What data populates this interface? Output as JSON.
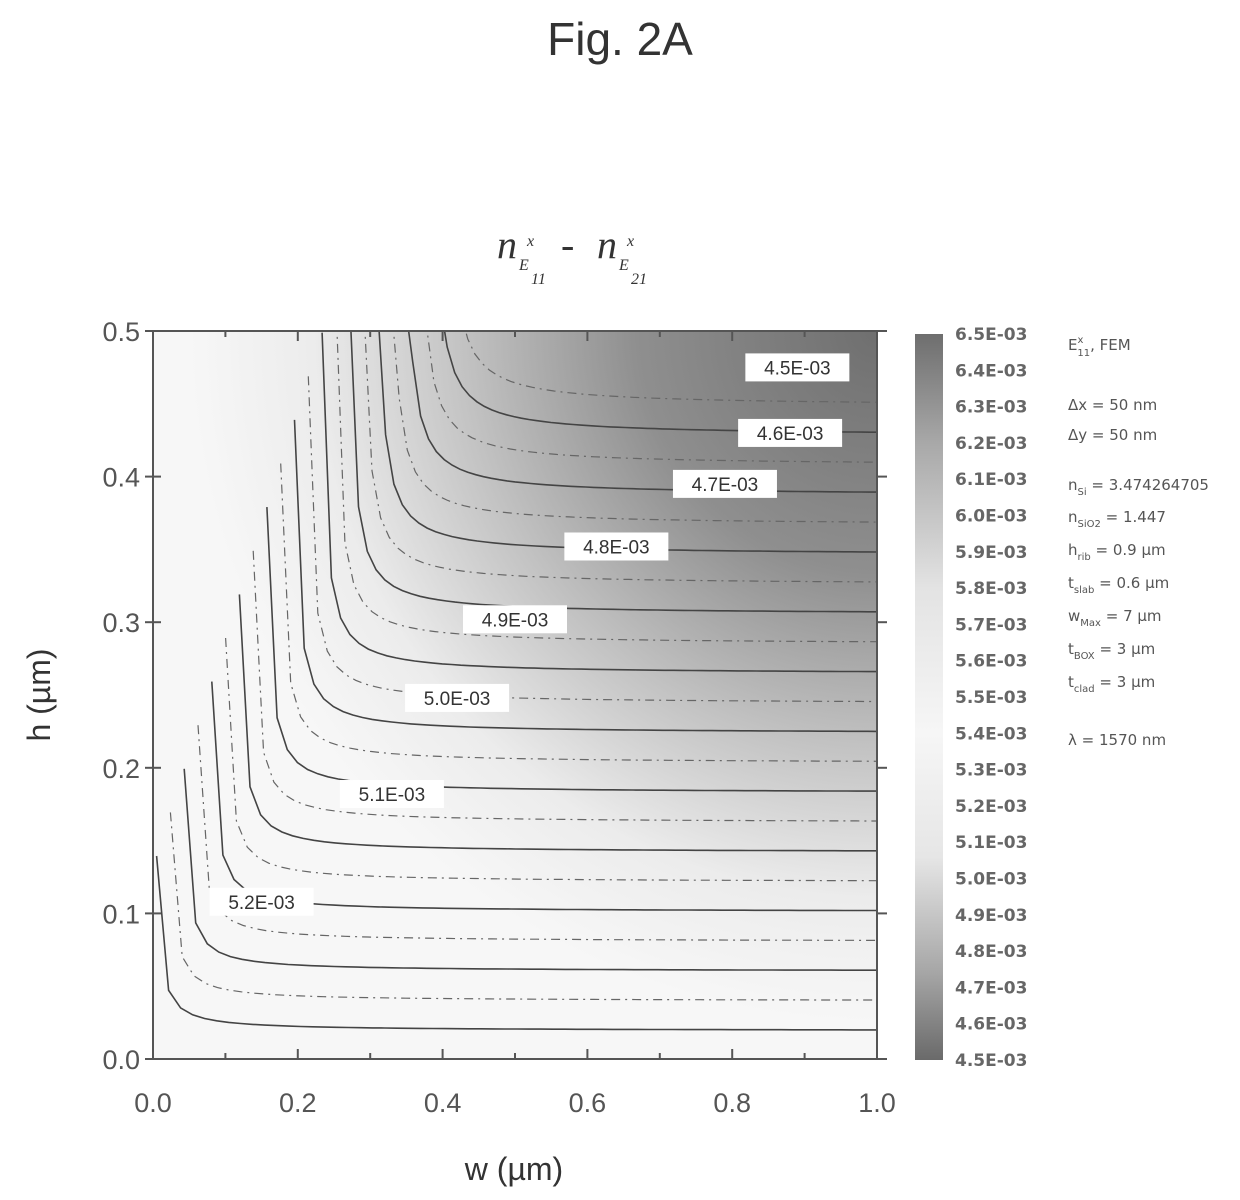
{
  "figure": {
    "label": "Fig. 2A"
  },
  "chart_data": {
    "type": "heatmap",
    "title": "n_{E11x} - n_{E21x}",
    "title_parts": [
      {
        "base": "n",
        "sup": "x",
        "sub": "11",
        "letter": "E"
      },
      {
        "base": "n",
        "sup": "x",
        "sub": "21",
        "letter": "E"
      }
    ],
    "title_separator": "-",
    "xlabel": "w  (µm)",
    "ylabel": "h  (µm)",
    "xlim": [
      0.0,
      1.0
    ],
    "ylim": [
      0.0,
      0.5
    ],
    "xticks": [
      "0.0",
      "0.2",
      "0.4",
      "0.6",
      "0.8",
      "1.0"
    ],
    "yticks": [
      "0.0",
      "0.1",
      "0.2",
      "0.3",
      "0.4",
      "0.5"
    ],
    "xtick_values": [
      0.0,
      0.2,
      0.4,
      0.6,
      0.8,
      1.0
    ],
    "ytick_values": [
      0.0,
      0.1,
      0.2,
      0.3,
      0.4,
      0.5
    ],
    "colorbar": {
      "ticks": [
        "6.5E-03",
        "6.4E-03",
        "6.3E-03",
        "6.2E-03",
        "6.1E-03",
        "6.0E-03",
        "5.9E-03",
        "5.8E-03",
        "5.7E-03",
        "5.6E-03",
        "5.5E-03",
        "5.4E-03",
        "5.3E-03",
        "5.2E-03",
        "5.1E-03",
        "5.0E-03",
        "4.9E-03",
        "4.8E-03",
        "4.7E-03",
        "4.6E-03",
        "4.5E-03"
      ],
      "range": [
        0.0045,
        0.0065
      ]
    },
    "contours": [
      {
        "label": "4.5E-03",
        "value": 0.0045,
        "label_at": [
          0.89,
          0.475
        ]
      },
      {
        "label": "4.6E-03",
        "value": 0.0046,
        "label_at": [
          0.88,
          0.43
        ]
      },
      {
        "label": "4.7E-03",
        "value": 0.0047,
        "label_at": [
          0.79,
          0.395
        ]
      },
      {
        "label": "4.8E-03",
        "value": 0.0048,
        "label_at": [
          0.64,
          0.352
        ]
      },
      {
        "label": "4.9E-03",
        "value": 0.0049,
        "label_at": [
          0.5,
          0.302
        ]
      },
      {
        "label": "5.0E-03",
        "value": 0.005,
        "label_at": [
          0.42,
          0.248
        ]
      },
      {
        "label": "5.1E-03",
        "value": 0.0051,
        "label_at": [
          0.33,
          0.182
        ]
      },
      {
        "label": "5.2E-03",
        "value": 0.0052,
        "label_at": [
          0.15,
          0.108
        ]
      }
    ],
    "grid": false,
    "legend_position": "right"
  },
  "parameters": [
    {
      "name": "E",
      "sup": "x",
      "sub": "11",
      "text": ", FEM"
    },
    {
      "name": "Δx",
      "sub": "",
      "text": " = 50 nm"
    },
    {
      "name": "Δy",
      "sub": "",
      "text": " = 50 nm"
    },
    {
      "name": "n",
      "sub": "Si",
      "text": " = 3.474264705"
    },
    {
      "name": "n",
      "sub": "SiO2",
      "text": " = 1.447"
    },
    {
      "name": "h",
      "sub": "rib",
      "text": " = 0.9 µm"
    },
    {
      "name": "t",
      "sub": "slab",
      "text": " = 0.6 µm"
    },
    {
      "name": "w",
      "sub": "Max",
      "text": " = 7 µm"
    },
    {
      "name": "t",
      "sub": "BOX",
      "text": " = 3 µm"
    },
    {
      "name": "t",
      "sub": "clad",
      "text": " = 3 µm"
    },
    {
      "name": "λ",
      "sub": "",
      "text": " = 1570 nm"
    }
  ]
}
